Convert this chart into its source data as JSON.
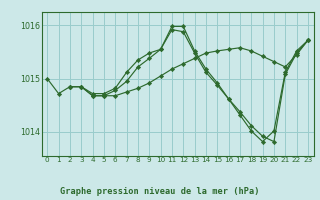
{
  "title": "Graphe pression niveau de la mer (hPa)",
  "bg_color": "#cce8e8",
  "grid_color": "#99cccc",
  "line_color": "#2d6a2d",
  "marker_color": "#2d6a2d",
  "xlim": [
    -0.5,
    23.5
  ],
  "ylim": [
    1013.55,
    1016.25
  ],
  "yticks": [
    1014,
    1015,
    1016
  ],
  "xticks": [
    0,
    1,
    2,
    3,
    4,
    5,
    6,
    7,
    8,
    9,
    10,
    11,
    12,
    13,
    14,
    15,
    16,
    17,
    18,
    19,
    20,
    21,
    22,
    23
  ],
  "series": [
    {
      "x": [
        0,
        1,
        2,
        3,
        4,
        5,
        6,
        7,
        8,
        9,
        10,
        11,
        12,
        13,
        14,
        15,
        16,
        17,
        18,
        19,
        20,
        21,
        22,
        23
      ],
      "y": [
        1015.0,
        1014.72,
        1014.85,
        1014.85,
        1014.72,
        1014.72,
        1014.82,
        1015.12,
        1015.35,
        1015.48,
        1015.55,
        1015.98,
        1015.98,
        1015.52,
        1015.18,
        1014.92,
        1014.62,
        1014.32,
        1014.02,
        1013.82,
        1014.02,
        1015.12,
        1015.52,
        1015.72
      ]
    },
    {
      "x": [
        2,
        3,
        4,
        5,
        6,
        7,
        8,
        9,
        10,
        11,
        12,
        13,
        14,
        15,
        16,
        17,
        18,
        19,
        20,
        21,
        22,
        23
      ],
      "y": [
        1014.85,
        1014.85,
        1014.68,
        1014.68,
        1014.78,
        1014.95,
        1015.22,
        1015.38,
        1015.55,
        1015.92,
        1015.88,
        1015.48,
        1015.12,
        1014.88,
        1014.62,
        1014.38,
        1014.12,
        1013.92,
        1013.82,
        1015.08,
        1015.48,
        1015.72
      ]
    },
    {
      "x": [
        2,
        3,
        4,
        5,
        6,
        7,
        8,
        9,
        10,
        11,
        12,
        13,
        14,
        15,
        16,
        17,
        18,
        19,
        20,
        21,
        22,
        23
      ],
      "y": [
        1014.85,
        1014.85,
        1014.68,
        1014.68,
        1014.68,
        1014.75,
        1014.82,
        1014.92,
        1015.05,
        1015.18,
        1015.28,
        1015.38,
        1015.48,
        1015.52,
        1015.55,
        1015.58,
        1015.52,
        1015.42,
        1015.32,
        1015.22,
        1015.45,
        1015.72
      ]
    }
  ]
}
